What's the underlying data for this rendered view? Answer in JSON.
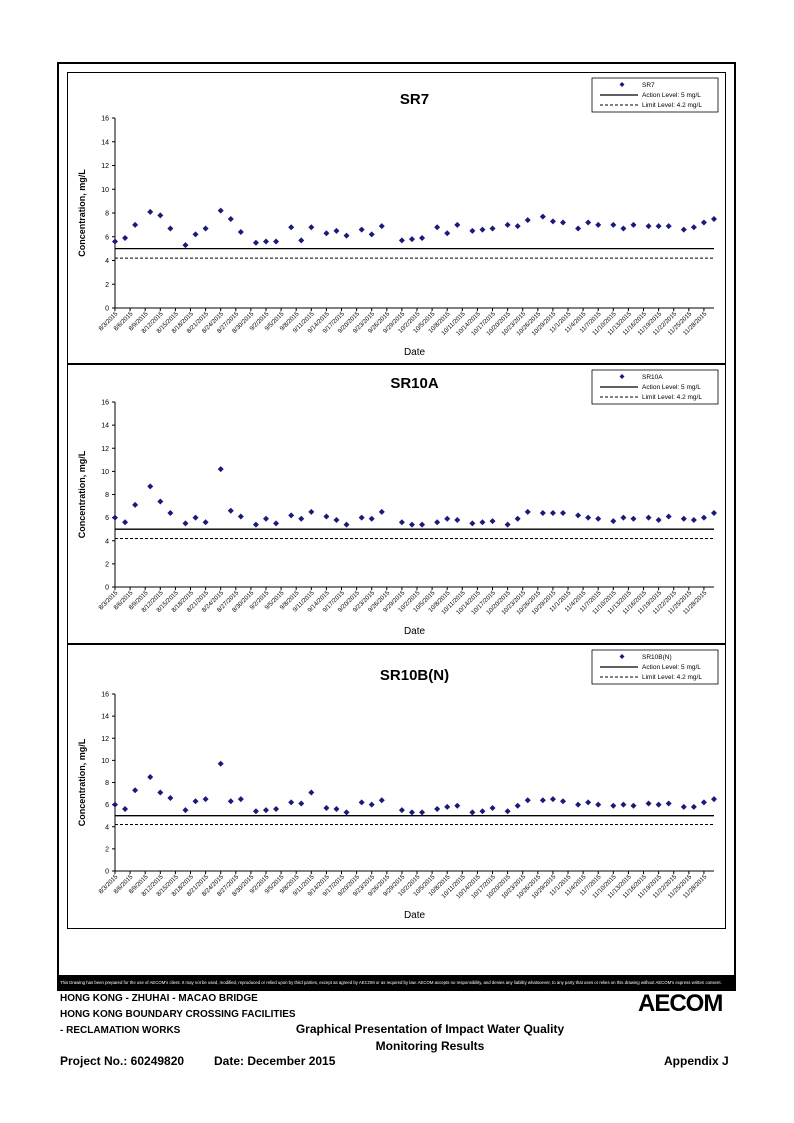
{
  "footer": {
    "disclaimer": "This Drawing has been prepared for the use of AECOM's client. It may not be used, modified, reproduced or relied upon by third parties, except as agreed by AECOM or as required by law. AECOM accepts no responsibility, and denies any liability whatsoever, to any party that uses or relies on this drawing without AECOM's express written consent.",
    "project_line1": "HONG KONG - ZHUHAI - MACAO BRIDGE",
    "project_line2": "HONG KONG BOUNDARY CROSSING FACILITIES",
    "project_line3": "- RECLAMATION WORKS",
    "project_no": "Project No.: 60249820",
    "date": "Date: December 2015",
    "title_line1": "Graphical Presentation of Impact Water Quality",
    "title_line2": "Monitoring Results",
    "appendix": "Appendix J",
    "logo": "AECOM"
  },
  "colors": {
    "series": "#1a1a7a",
    "line": "#000000"
  },
  "chart_data": [
    {
      "type": "scatter",
      "title": "SR7",
      "xlabel": "Date",
      "ylabel": "Concentration, mg/L",
      "ylim": [
        0,
        16
      ],
      "yticks": [
        "0",
        "2",
        "4",
        "6",
        "8",
        "10",
        "12",
        "14",
        "16"
      ],
      "xticks": [
        "8/3/2015",
        "8/6/2015",
        "8/9/2015",
        "8/12/2015",
        "8/15/2015",
        "8/18/2015",
        "8/21/2015",
        "8/24/2015",
        "8/27/2015",
        "8/30/2015",
        "9/2/2015",
        "9/5/2015",
        "9/8/2015",
        "9/11/2015",
        "9/14/2015",
        "9/17/2015",
        "9/20/2015",
        "9/23/2015",
        "9/26/2015",
        "9/29/2015",
        "10/2/2015",
        "10/5/2015",
        "10/8/2015",
        "10/11/2015",
        "10/14/2015",
        "10/17/2015",
        "10/20/2015",
        "10/23/2015",
        "10/26/2015",
        "10/29/2015",
        "11/1/2015",
        "11/4/2015",
        "11/7/2015",
        "11/10/2015",
        "11/13/2015",
        "11/16/2015",
        "11/19/2015",
        "11/22/2015",
        "11/25/2015",
        "11/28/2015"
      ],
      "xlim": [
        "8/3/2015",
        "11/30/2015"
      ],
      "legend": {
        "position": "top-right",
        "series": "SR7",
        "action": "Action Level: 5 mg/L",
        "limit": "Limit Level: 4.2 mg/L"
      },
      "action_level": 5,
      "limit_level": 4.2,
      "x": [
        "8/3/2015",
        "8/5/2015",
        "8/7/2015",
        "8/10/2015",
        "8/12/2015",
        "8/14/2015",
        "8/17/2015",
        "8/19/2015",
        "8/21/2015",
        "8/24/2015",
        "8/26/2015",
        "8/28/2015",
        "8/31/2015",
        "9/2/2015",
        "9/4/2015",
        "9/7/2015",
        "9/9/2015",
        "9/11/2015",
        "9/14/2015",
        "9/16/2015",
        "9/18/2015",
        "9/21/2015",
        "9/23/2015",
        "9/25/2015",
        "9/29/2015",
        "10/1/2015",
        "10/3/2015",
        "10/6/2015",
        "10/8/2015",
        "10/10/2015",
        "10/13/2015",
        "10/15/2015",
        "10/17/2015",
        "10/20/2015",
        "10/22/2015",
        "10/24/2015",
        "10/27/2015",
        "10/29/2015",
        "10/31/2015",
        "11/3/2015",
        "11/5/2015",
        "11/7/2015",
        "11/10/2015",
        "11/12/2015",
        "11/14/2015",
        "11/17/2015",
        "11/19/2015",
        "11/21/2015",
        "11/24/2015",
        "11/26/2015",
        "11/28/2015",
        "11/30/2015"
      ],
      "values": [
        5.6,
        5.9,
        7.0,
        8.1,
        7.8,
        6.7,
        5.3,
        6.2,
        6.7,
        8.2,
        7.5,
        6.4,
        5.5,
        5.6,
        5.6,
        6.8,
        5.7,
        6.8,
        6.3,
        6.5,
        6.1,
        6.6,
        6.2,
        6.9,
        5.7,
        5.8,
        5.9,
        6.8,
        6.3,
        7.0,
        6.5,
        6.6,
        6.7,
        7.0,
        6.9,
        7.4,
        7.7,
        7.3,
        7.2,
        6.7,
        7.2,
        7.0,
        7.0,
        6.7,
        7.0,
        6.9,
        6.9,
        6.9,
        6.6,
        6.8,
        7.2,
        7.5
      ]
    },
    {
      "type": "scatter",
      "title": "SR10A",
      "xlabel": "Date",
      "ylabel": "Concentration, mg/L",
      "ylim": [
        0,
        16
      ],
      "yticks": [
        "0",
        "2",
        "4",
        "6",
        "8",
        "10",
        "12",
        "14",
        "16"
      ],
      "xticks": [
        "8/3/2015",
        "8/6/2015",
        "8/9/2015",
        "8/12/2015",
        "8/15/2015",
        "8/18/2015",
        "8/21/2015",
        "8/24/2015",
        "8/27/2015",
        "8/30/2015",
        "9/2/2015",
        "9/5/2015",
        "9/8/2015",
        "9/11/2015",
        "9/14/2015",
        "9/17/2015",
        "9/20/2015",
        "9/23/2015",
        "9/26/2015",
        "9/29/2015",
        "10/2/2015",
        "10/5/2015",
        "10/8/2015",
        "10/11/2015",
        "10/14/2015",
        "10/17/2015",
        "10/20/2015",
        "10/23/2015",
        "10/26/2015",
        "10/29/2015",
        "11/1/2015",
        "11/4/2015",
        "11/7/2015",
        "11/10/2015",
        "11/13/2015",
        "11/16/2015",
        "11/19/2015",
        "11/22/2015",
        "11/25/2015",
        "11/28/2015"
      ],
      "xlim": [
        "8/3/2015",
        "11/30/2015"
      ],
      "legend": {
        "position": "top-right",
        "series": "SR10A",
        "action": "Action Level: 5 mg/L",
        "limit": "Limit Level: 4.2 mg/L"
      },
      "action_level": 5,
      "limit_level": 4.2,
      "x": [
        "8/3/2015",
        "8/5/2015",
        "8/7/2015",
        "8/10/2015",
        "8/12/2015",
        "8/14/2015",
        "8/17/2015",
        "8/19/2015",
        "8/21/2015",
        "8/24/2015",
        "8/26/2015",
        "8/28/2015",
        "8/31/2015",
        "9/2/2015",
        "9/4/2015",
        "9/7/2015",
        "9/9/2015",
        "9/11/2015",
        "9/14/2015",
        "9/16/2015",
        "9/18/2015",
        "9/21/2015",
        "9/23/2015",
        "9/25/2015",
        "9/29/2015",
        "10/1/2015",
        "10/3/2015",
        "10/6/2015",
        "10/8/2015",
        "10/10/2015",
        "10/13/2015",
        "10/15/2015",
        "10/17/2015",
        "10/20/2015",
        "10/22/2015",
        "10/24/2015",
        "10/27/2015",
        "10/29/2015",
        "10/31/2015",
        "11/3/2015",
        "11/5/2015",
        "11/7/2015",
        "11/10/2015",
        "11/12/2015",
        "11/14/2015",
        "11/17/2015",
        "11/19/2015",
        "11/21/2015",
        "11/24/2015",
        "11/26/2015",
        "11/28/2015",
        "11/30/2015"
      ],
      "values": [
        6.0,
        5.6,
        7.1,
        8.7,
        7.4,
        6.4,
        5.5,
        6.0,
        5.6,
        10.2,
        6.6,
        6.1,
        5.4,
        5.9,
        5.5,
        6.2,
        5.9,
        6.5,
        6.1,
        5.8,
        5.4,
        6.0,
        5.9,
        6.5,
        5.6,
        5.4,
        5.4,
        5.6,
        5.9,
        5.8,
        5.5,
        5.6,
        5.7,
        5.4,
        5.9,
        6.5,
        6.4,
        6.4,
        6.4,
        6.2,
        6.0,
        5.9,
        5.7,
        6.0,
        5.9,
        6.0,
        5.8,
        6.1,
        5.9,
        5.8,
        6.0,
        6.4
      ]
    },
    {
      "type": "scatter",
      "title": "SR10B(N)",
      "xlabel": "Date",
      "ylabel": "Concentration, mg/L",
      "ylim": [
        0,
        16
      ],
      "yticks": [
        "0",
        "2",
        "4",
        "6",
        "8",
        "10",
        "12",
        "14",
        "16"
      ],
      "xticks": [
        "8/3/2015",
        "8/6/2015",
        "8/9/2015",
        "8/12/2015",
        "8/15/2015",
        "8/18/2015",
        "8/21/2015",
        "8/24/2015",
        "8/27/2015",
        "8/30/2015",
        "9/2/2015",
        "9/5/2015",
        "9/8/2015",
        "9/11/2015",
        "9/14/2015",
        "9/17/2015",
        "9/20/2015",
        "9/23/2015",
        "9/26/2015",
        "9/29/2015",
        "10/2/2015",
        "10/5/2015",
        "10/8/2015",
        "10/11/2015",
        "10/14/2015",
        "10/17/2015",
        "10/20/2015",
        "10/23/2015",
        "10/26/2015",
        "10/29/2015",
        "11/1/2015",
        "11/4/2015",
        "11/7/2015",
        "11/10/2015",
        "11/13/2015",
        "11/16/2015",
        "11/19/2015",
        "11/22/2015",
        "11/25/2015",
        "11/28/2015"
      ],
      "xlim": [
        "8/3/2015",
        "11/30/2015"
      ],
      "legend": {
        "position": "top-right",
        "series": "SR10B(N)",
        "action": "Action Level: 5 mg/L",
        "limit": "Limit Level: 4.2 mg/L"
      },
      "action_level": 5,
      "limit_level": 4.2,
      "x": [
        "8/3/2015",
        "8/5/2015",
        "8/7/2015",
        "8/10/2015",
        "8/12/2015",
        "8/14/2015",
        "8/17/2015",
        "8/19/2015",
        "8/21/2015",
        "8/24/2015",
        "8/26/2015",
        "8/28/2015",
        "8/31/2015",
        "9/2/2015",
        "9/4/2015",
        "9/7/2015",
        "9/9/2015",
        "9/11/2015",
        "9/14/2015",
        "9/16/2015",
        "9/18/2015",
        "9/21/2015",
        "9/23/2015",
        "9/25/2015",
        "9/29/2015",
        "10/1/2015",
        "10/3/2015",
        "10/6/2015",
        "10/8/2015",
        "10/10/2015",
        "10/13/2015",
        "10/15/2015",
        "10/17/2015",
        "10/20/2015",
        "10/22/2015",
        "10/24/2015",
        "10/27/2015",
        "10/29/2015",
        "10/31/2015",
        "11/3/2015",
        "11/5/2015",
        "11/7/2015",
        "11/10/2015",
        "11/12/2015",
        "11/14/2015",
        "11/17/2015",
        "11/19/2015",
        "11/21/2015",
        "11/24/2015",
        "11/26/2015",
        "11/28/2015",
        "11/30/2015"
      ],
      "values": [
        6.0,
        5.6,
        7.3,
        8.5,
        7.1,
        6.6,
        5.5,
        6.3,
        6.5,
        9.7,
        6.3,
        6.5,
        5.4,
        5.5,
        5.6,
        6.2,
        6.1,
        7.1,
        5.7,
        5.6,
        5.3,
        6.2,
        6.0,
        6.4,
        5.5,
        5.3,
        5.3,
        5.6,
        5.8,
        5.9,
        5.3,
        5.4,
        5.7,
        5.4,
        5.9,
        6.4,
        6.4,
        6.5,
        6.3,
        6.0,
        6.2,
        6.0,
        5.9,
        6.0,
        5.9,
        6.1,
        6.0,
        6.1,
        5.8,
        5.8,
        6.2,
        6.5
      ]
    }
  ]
}
